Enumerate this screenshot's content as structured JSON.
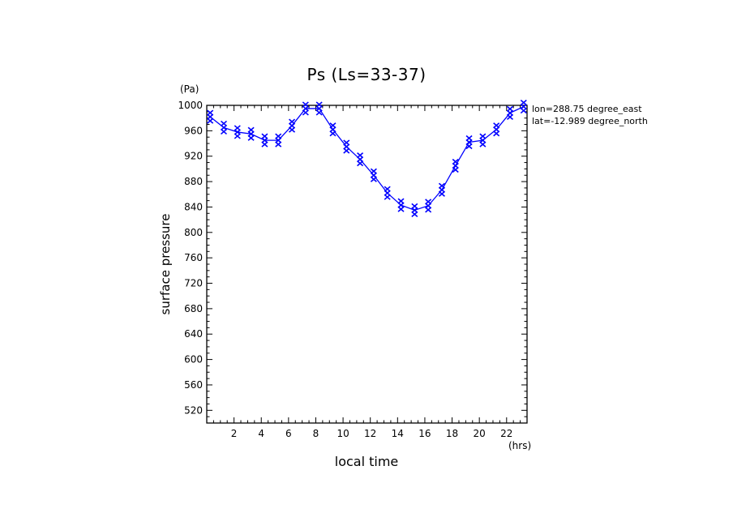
{
  "chart_data": {
    "type": "line",
    "title": "Ps (Ls=33-37)",
    "xlabel": "local time",
    "ylabel": "surface pressure",
    "xunit": "(hrs)",
    "yunit": "(Pa)",
    "xlim": [
      0,
      23.5
    ],
    "ylim": [
      500,
      1000
    ],
    "xticks": [
      2,
      4,
      6,
      8,
      10,
      12,
      14,
      16,
      18,
      20,
      22
    ],
    "yticks": [
      520,
      560,
      600,
      640,
      680,
      720,
      760,
      800,
      840,
      880,
      920,
      960,
      1000
    ],
    "annotations": [
      "lon=288.75 degree_east",
      "lat=-12.989 degree_north"
    ],
    "line_color": "#0000ff",
    "series": [
      {
        "x": [
          0,
          1,
          2,
          3,
          4,
          5,
          6,
          7,
          8,
          9,
          10,
          11,
          12,
          13,
          14,
          15,
          16,
          17,
          18,
          19,
          20,
          21,
          22,
          23
        ],
        "values": [
          982,
          965,
          958,
          955,
          945,
          945,
          968,
          995,
          995,
          962,
          935,
          915,
          890,
          862,
          843,
          835,
          842,
          867,
          905,
          942,
          945,
          962,
          988,
          998
        ]
      }
    ]
  }
}
